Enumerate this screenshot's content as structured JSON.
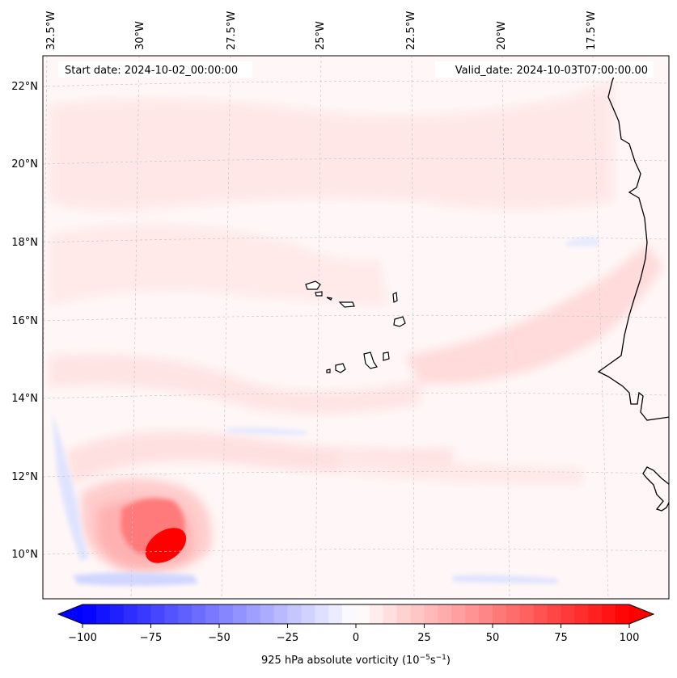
{
  "map": {
    "start_date_label": "Start date: 2024-10-02_00:00:00",
    "valid_date_label": "Valid_date: 2024-10-03T07:00:00.00",
    "lon_labels": [
      "32.5°W",
      "30°W",
      "27.5°W",
      "25°W",
      "22.5°W",
      "20°W",
      "17.5°W"
    ],
    "lat_labels": [
      "22°N",
      "20°N",
      "18°N",
      "16°N",
      "14°N",
      "12°N",
      "10°N"
    ],
    "field_variable": "925 hPa absolute vorticity",
    "features": [
      {
        "name": "tropical-cyclone-vortex",
        "max_vorticity": 100
      },
      {
        "name": "cape-verde-islands"
      },
      {
        "name": "west-africa-coastline"
      }
    ]
  },
  "colorbar": {
    "ticks": [
      "−100",
      "−75",
      "−50",
      "−25",
      "0",
      "25",
      "50",
      "75",
      "100"
    ],
    "tick_values": [
      -100,
      -75,
      -50,
      -25,
      0,
      25,
      50,
      75,
      100
    ],
    "min": -100,
    "max": 100,
    "levels": 40,
    "label_main": "925 hPa absolute vorticity (10",
    "label_exp1": "−5",
    "label_mid": "s",
    "label_exp2": "−1",
    "label_end": ")",
    "colormap": "bwr",
    "low_color": "#0000ff",
    "mid_color": "#ffffff",
    "high_color": "#ff0000"
  }
}
